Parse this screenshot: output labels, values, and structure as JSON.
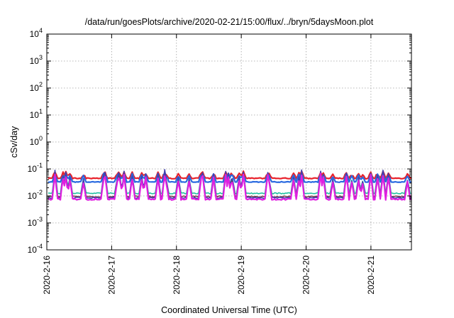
{
  "chart_data": {
    "type": "line",
    "title": "/data/run/goesPlots/archive/2020-02-21/15:00/flux/../bryn/5daysMoon.plot",
    "xlabel": "Coordinated Universal Time (UTC)",
    "ylabel": "cSv/day",
    "yscale": "log",
    "ylim": [
      0.0001,
      10000
    ],
    "xlim": [
      "2020-02-16",
      "2020-02-21 15:00"
    ],
    "grid": true,
    "x_ticks": [
      "2020-2-16",
      "2020-2-17",
      "2020-2-18",
      "2020-2-19",
      "2020-2-20",
      "2020-2-21"
    ],
    "y_ticks": [
      {
        "base": "10",
        "exp": "-4"
      },
      {
        "base": "10",
        "exp": "-3"
      },
      {
        "base": "10",
        "exp": "-2"
      },
      {
        "base": "10",
        "exp": "-1"
      },
      {
        "base": "10",
        "exp": "0"
      },
      {
        "base": "10",
        "exp": "1"
      },
      {
        "base": "10",
        "exp": "2"
      },
      {
        "base": "10",
        "exp": "3"
      },
      {
        "base": "10",
        "exp": "4"
      }
    ],
    "series": [
      {
        "color": "#e8202a",
        "baseline": 0.045,
        "spike": 0.075,
        "noise": 0.08
      },
      {
        "color": "#2a6ae0",
        "baseline": 0.033,
        "spike": 0.07,
        "noise": 0.06
      },
      {
        "color": "#20c0a0",
        "baseline": 0.0125,
        "spike": 0.07,
        "noise": 0.1
      },
      {
        "color": "#7a3a4a",
        "baseline": 0.0095,
        "spike": 0.07,
        "noise": 0.1
      },
      {
        "color": "#4040b0",
        "baseline": 0.0085,
        "spike": 0.09,
        "noise": 0.12
      },
      {
        "color": "#e020e0",
        "baseline": 0.0075,
        "spike": 0.065,
        "noise": 0.12
      }
    ]
  }
}
